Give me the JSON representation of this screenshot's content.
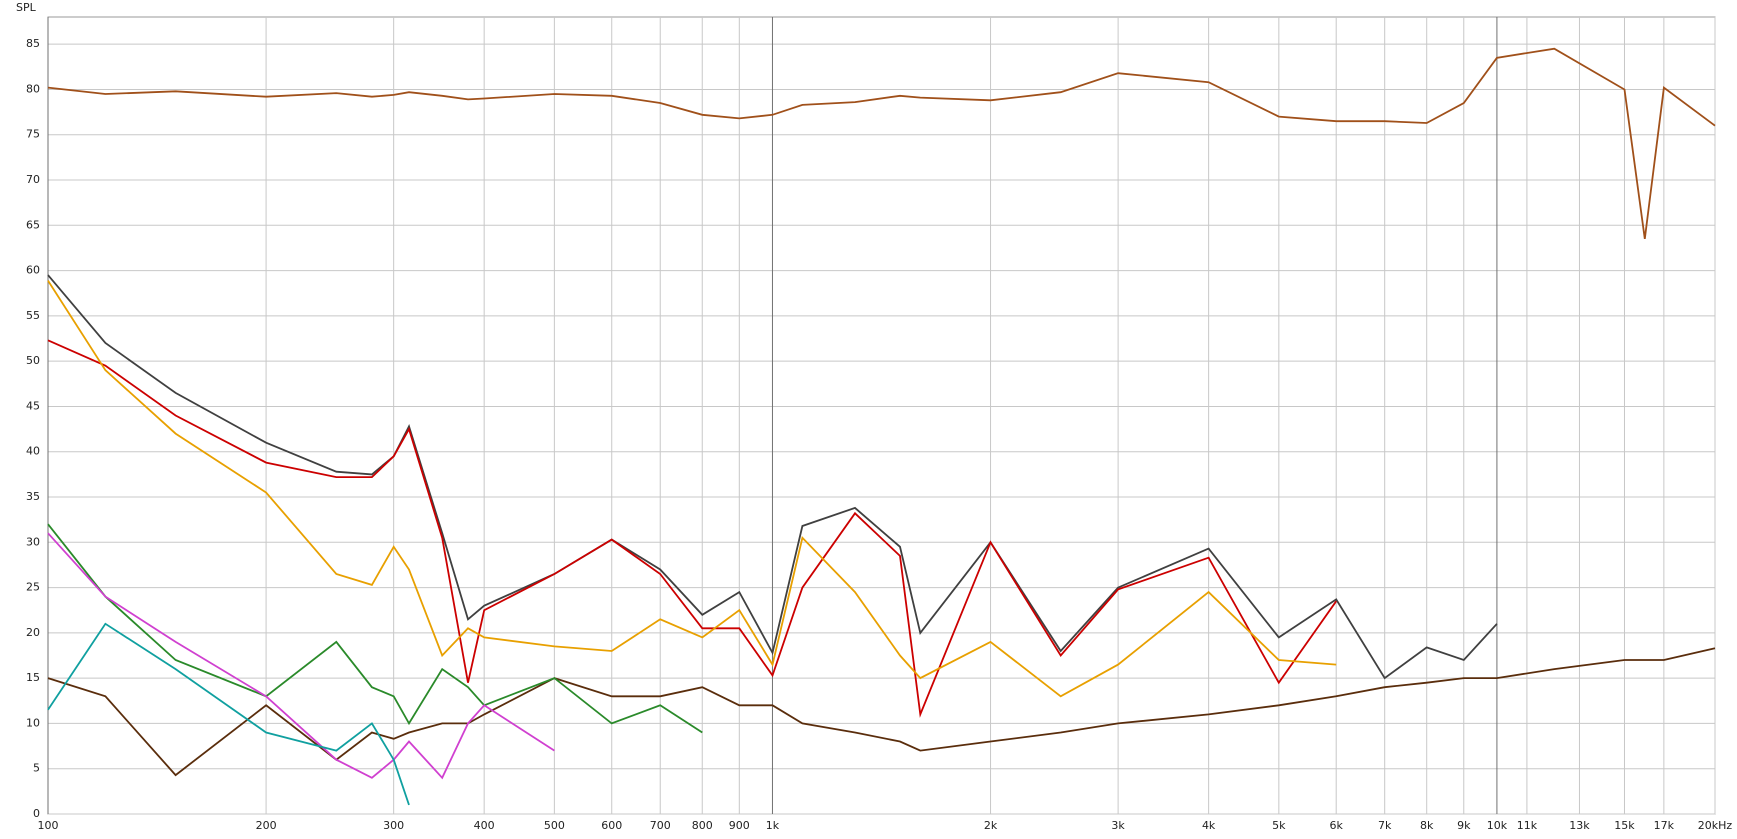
{
  "chart_data": {
    "type": "line",
    "y_label": "SPL",
    "log_x": true,
    "grid": true,
    "xlim": [
      100,
      20000
    ],
    "ylim": [
      0,
      88
    ],
    "yticks": [
      0,
      5,
      10,
      15,
      20,
      25,
      30,
      35,
      40,
      45,
      50,
      55,
      60,
      65,
      70,
      75,
      80,
      85
    ],
    "xticks": [
      100,
      200,
      300,
      400,
      500,
      600,
      700,
      800,
      900,
      {
        "value": 1000,
        "label": "1k"
      },
      {
        "value": 2000,
        "label": "2k"
      },
      {
        "value": 3000,
        "label": "3k"
      },
      {
        "value": 4000,
        "label": "4k"
      },
      {
        "value": 5000,
        "label": "5k"
      },
      {
        "value": 6000,
        "label": "6k"
      },
      {
        "value": 7000,
        "label": "7k"
      },
      {
        "value": 8000,
        "label": "8k"
      },
      {
        "value": 9000,
        "label": "9k"
      },
      {
        "value": 10000,
        "label": "10k"
      },
      {
        "value": 11000,
        "label": "11k"
      },
      {
        "value": 13000,
        "label": "13k"
      },
      {
        "value": 15000,
        "label": "15k"
      },
      {
        "value": 17000,
        "label": "17k"
      },
      {
        "value": 20000,
        "label": "20kHz"
      }
    ],
    "x": [
      100,
      120,
      150,
      200,
      250,
      280,
      300,
      315,
      350,
      380,
      400,
      500,
      600,
      700,
      800,
      900,
      1000,
      1100,
      1300,
      1500,
      1600,
      2000,
      2500,
      3000,
      4000,
      5000,
      6000,
      7000,
      8000,
      9000,
      10000,
      12000,
      15000,
      16000,
      17000,
      20000
    ],
    "series": [
      {
        "color": "#a0501a",
        "values": [
          80.2,
          79.5,
          79.8,
          79.2,
          79.6,
          79.2,
          79.4,
          79.7,
          79.3,
          78.9,
          79.0,
          79.5,
          79.3,
          78.5,
          77.2,
          76.8,
          77.2,
          78.3,
          78.6,
          79.3,
          79.1,
          78.8,
          79.7,
          81.8,
          80.8,
          77.0,
          76.5,
          76.5,
          76.3,
          78.5,
          83.5,
          84.5,
          80.0,
          63.5,
          80.2,
          76.0
        ]
      },
      {
        "color": "#404040",
        "values": [
          59.5,
          52,
          46.5,
          41,
          37.8,
          37.5,
          39.5,
          42.8,
          31,
          21.5,
          23,
          26.5,
          30.3,
          27,
          22,
          24.5,
          17.8,
          31.8,
          33.8,
          29.5,
          20,
          30,
          18,
          25,
          29.3,
          19.5,
          23.7,
          15,
          18.4,
          17,
          21,
          null,
          null,
          null,
          null,
          null
        ]
      },
      {
        "color": "#cc0000",
        "values": [
          52.3,
          49.5,
          44,
          38.8,
          37.2,
          37.2,
          39.5,
          42.5,
          30.5,
          14.5,
          22.5,
          26.5,
          30.3,
          26.5,
          20.5,
          20.5,
          15.3,
          25,
          33.2,
          28.5,
          11,
          30,
          17.5,
          24.8,
          28.3,
          14.5,
          23.5,
          null,
          null,
          null,
          null,
          null,
          null,
          null,
          null,
          null
        ]
      },
      {
        "color": "#e8a000",
        "values": [
          58.9,
          49,
          42,
          35.5,
          26.5,
          25.3,
          29.5,
          27,
          17.5,
          20.5,
          19.5,
          18.5,
          18,
          21.5,
          19.5,
          22.5,
          16.5,
          30.5,
          24.5,
          17.5,
          15,
          19,
          13,
          16.5,
          24.5,
          17,
          16.5,
          null,
          null,
          null,
          null,
          null,
          null,
          null,
          null,
          null
        ]
      },
      {
        "color": "#5a2d0c",
        "values": [
          15,
          13,
          4.3,
          12,
          6,
          9,
          8.3,
          9,
          10,
          10,
          11,
          15,
          13,
          13,
          14,
          12,
          12,
          10,
          9,
          8,
          7,
          8,
          9,
          10,
          11,
          12,
          13,
          14,
          14.5,
          15,
          15,
          16,
          17,
          17,
          17,
          18.3
        ]
      },
      {
        "color": "#2a8a2a",
        "values": [
          32,
          24,
          17,
          13,
          19,
          14,
          13,
          10,
          16,
          14,
          12,
          15,
          10,
          12,
          9,
          null,
          null,
          null,
          null,
          null,
          null,
          null,
          null,
          null,
          null,
          null,
          null,
          null,
          null,
          null,
          null,
          null,
          null,
          null,
          null,
          null
        ]
      },
      {
        "color": "#d040d0",
        "values": [
          31,
          24,
          19,
          13,
          6,
          4,
          6,
          8,
          4,
          10,
          12,
          7,
          null,
          null,
          null,
          null,
          null,
          null,
          null,
          null,
          null,
          null,
          null,
          null,
          null,
          null,
          null,
          null,
          null,
          null,
          null,
          null,
          null,
          null,
          null,
          null
        ]
      },
      {
        "color": "#10a0a0",
        "values": [
          11.5,
          21,
          16,
          9,
          7,
          10,
          6,
          1,
          null,
          null,
          null,
          null,
          null,
          null,
          null,
          null,
          null,
          null,
          null,
          null,
          null,
          null,
          null,
          null,
          null,
          null,
          null,
          null,
          null,
          null,
          null,
          null,
          null,
          null,
          null,
          null
        ]
      }
    ]
  }
}
